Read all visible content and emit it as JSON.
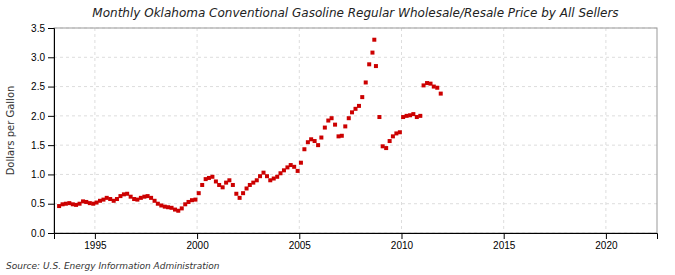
{
  "chart_data": {
    "type": "scatter",
    "title": "Monthly Oklahoma Conventional Gasoline Regular Wholesale/Resale Price by All Sellers",
    "y_label": "Dollars per Gallon",
    "annotations": [
      "Source: U.S. Energy Information Administration"
    ],
    "color": "#cc0000",
    "marker": "square",
    "grid": true,
    "xlim": [
      1993.0,
      2022.5
    ],
    "xticks": [
      1995,
      2000,
      2005,
      2010,
      2015,
      2020
    ],
    "ylim": [
      0.0,
      3.5
    ],
    "yticks": [
      {
        "value": 0.0,
        "label": "0.0"
      },
      0.5,
      {
        "value": 1.0,
        "label": "1.0"
      },
      1.5,
      {
        "value": 2.0,
        "label": "2.0"
      },
      2.5,
      {
        "value": 3.0,
        "label": "3.0"
      },
      3.5
    ],
    "x": [
      1993.25,
      1993.42,
      1993.58,
      1993.75,
      1993.92,
      1994.08,
      1994.25,
      1994.42,
      1994.58,
      1994.75,
      1994.92,
      1995.08,
      1995.25,
      1995.42,
      1995.58,
      1995.75,
      1995.92,
      1996.08,
      1996.25,
      1996.42,
      1996.58,
      1996.75,
      1996.92,
      1997.08,
      1997.25,
      1997.42,
      1997.58,
      1997.75,
      1997.92,
      1998.08,
      1998.25,
      1998.42,
      1998.58,
      1998.75,
      1998.92,
      1999.08,
      1999.25,
      1999.42,
      1999.58,
      1999.75,
      1999.92,
      2000.08,
      2000.25,
      2000.42,
      2000.58,
      2000.75,
      2000.92,
      2001.08,
      2001.25,
      2001.42,
      2001.58,
      2001.75,
      2001.92,
      2002.08,
      2002.25,
      2002.42,
      2002.58,
      2002.75,
      2002.92,
      2003.08,
      2003.25,
      2003.42,
      2003.58,
      2003.75,
      2003.92,
      2004.08,
      2004.25,
      2004.42,
      2004.58,
      2004.75,
      2004.92,
      2005.08,
      2005.25,
      2005.42,
      2005.58,
      2005.75,
      2005.92,
      2006.08,
      2006.25,
      2006.42,
      2006.58,
      2006.75,
      2006.92,
      2007.08,
      2007.25,
      2007.42,
      2007.58,
      2007.75,
      2007.92,
      2008.08,
      2008.25,
      2008.42,
      2008.58,
      2008.67,
      2008.75,
      2008.92,
      2009.08,
      2009.25,
      2009.42,
      2009.58,
      2009.75,
      2009.92,
      2010.08,
      2010.25,
      2010.42,
      2010.58,
      2010.75,
      2010.92,
      2011.08,
      2011.25,
      2011.42,
      2011.58,
      2011.75,
      2011.92
    ],
    "values": [
      0.46,
      0.49,
      0.5,
      0.51,
      0.49,
      0.48,
      0.5,
      0.54,
      0.53,
      0.51,
      0.5,
      0.52,
      0.55,
      0.57,
      0.6,
      0.58,
      0.55,
      0.58,
      0.63,
      0.66,
      0.67,
      0.62,
      0.58,
      0.57,
      0.6,
      0.62,
      0.63,
      0.6,
      0.55,
      0.5,
      0.47,
      0.45,
      0.44,
      0.43,
      0.4,
      0.38,
      0.42,
      0.49,
      0.53,
      0.56,
      0.57,
      0.68,
      0.82,
      0.92,
      0.94,
      0.96,
      0.88,
      0.82,
      0.78,
      0.86,
      0.9,
      0.82,
      0.67,
      0.6,
      0.68,
      0.76,
      0.82,
      0.86,
      0.9,
      0.97,
      1.03,
      0.97,
      0.9,
      0.93,
      0.96,
      1.02,
      1.07,
      1.12,
      1.16,
      1.13,
      1.06,
      1.2,
      1.43,
      1.55,
      1.6,
      1.57,
      1.5,
      1.63,
      1.8,
      1.92,
      1.96,
      1.85,
      1.65,
      1.66,
      1.82,
      1.96,
      2.06,
      2.12,
      2.17,
      2.32,
      2.57,
      2.88,
      3.08,
      3.3,
      2.85,
      1.98,
      1.48,
      1.45,
      1.57,
      1.65,
      1.7,
      1.72,
      1.98,
      2.0,
      2.01,
      2.03,
      1.98,
      2.0,
      2.52,
      2.56,
      2.55,
      2.5,
      2.48,
      2.38
    ]
  }
}
